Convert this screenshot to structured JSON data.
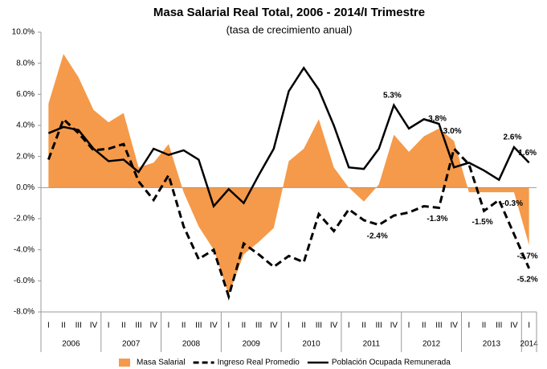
{
  "chart_data": {
    "type": "line",
    "title": "Masa Salarial Real Total, 2006 - 2014/I Trimestre",
    "subtitle": "(tasa de crecimiento anual)",
    "categories": [
      "I",
      "II",
      "III",
      "IV",
      "I",
      "II",
      "III",
      "IV",
      "I",
      "II",
      "III",
      "IV",
      "I",
      "II",
      "III",
      "IV",
      "I",
      "II",
      "III",
      "IV",
      "I",
      "II",
      "III",
      "IV",
      "I",
      "II",
      "III",
      "IV",
      "I",
      "II",
      "III",
      "IV",
      "I"
    ],
    "years": [
      "2006",
      "2007",
      "2008",
      "2009",
      "2010",
      "2011",
      "2012",
      "2013",
      "2014"
    ],
    "ylim": [
      -8,
      10
    ],
    "yticks": [
      {
        "value": -8,
        "label": "-8.0%"
      },
      {
        "value": -6,
        "label": "-6.0%"
      },
      {
        "value": -4,
        "label": "-4.0%"
      },
      {
        "value": -2,
        "label": "-2.0%"
      },
      {
        "value": 0,
        "label": "0.0%"
      },
      {
        "value": 2,
        "label": "2.0%"
      },
      {
        "value": 4,
        "label": "4.0%"
      },
      {
        "value": 6,
        "label": "6.0%"
      },
      {
        "value": 8,
        "label": "8.0%"
      },
      {
        "value": 10,
        "label": "10.0%"
      }
    ],
    "series": [
      {
        "name": "Masa Salarial",
        "color": "#f59a4a",
        "style": "area",
        "values": [
          5.4,
          8.6,
          7.1,
          5.0,
          4.2,
          4.8,
          1.3,
          1.6,
          2.8,
          -0.3,
          -2.5,
          -4.0,
          -6.9,
          -4.3,
          -3.5,
          -2.6,
          1.7,
          2.5,
          4.4,
          1.3,
          0,
          -0.9,
          0.2,
          3.4,
          2.3,
          3.3,
          3.8,
          3.0,
          -0.3,
          -0.3,
          -0.3,
          -0.3,
          -3.7
        ],
        "value_labels": [
          null,
          null,
          null,
          null,
          null,
          null,
          null,
          null,
          null,
          null,
          null,
          null,
          null,
          null,
          null,
          null,
          null,
          null,
          null,
          null,
          null,
          null,
          null,
          null,
          null,
          null,
          "3.8%",
          "3.0%",
          null,
          null,
          null,
          "-0.3%",
          "-3.7%"
        ]
      },
      {
        "name": "Ingreso Real Promedio",
        "color": "#000000",
        "style": "dashed",
        "values": [
          1.8,
          4.4,
          3.5,
          2.4,
          2.5,
          2.8,
          0.4,
          -0.8,
          0.8,
          -2.5,
          -4.6,
          -4.0,
          -7.0,
          -3.6,
          -4.3,
          -5.1,
          -4.4,
          -4.8,
          -1.7,
          -2.8,
          -1.4,
          -2.1,
          -2.4,
          -1.8,
          -1.6,
          -1.2,
          -1.3,
          2.5,
          1.5,
          -1.5,
          -0.8,
          -3.0,
          -5.2
        ],
        "value_labels": [
          null,
          null,
          null,
          null,
          null,
          null,
          null,
          null,
          null,
          null,
          null,
          null,
          null,
          null,
          null,
          null,
          null,
          null,
          null,
          null,
          null,
          null,
          "-2.4%",
          null,
          null,
          null,
          "-1.3%",
          null,
          null,
          "-1.5%",
          null,
          null,
          "-5.2%"
        ]
      },
      {
        "name": "Población Ocupada Remunerada",
        "color": "#000000",
        "style": "solid",
        "values": [
          3.5,
          3.9,
          3.7,
          2.5,
          1.7,
          1.8,
          1.0,
          2.5,
          2.1,
          2.4,
          1.8,
          -1.2,
          -0.1,
          -1.0,
          0.8,
          2.5,
          6.2,
          7.7,
          6.3,
          4.0,
          1.3,
          1.2,
          2.5,
          5.3,
          3.8,
          4.4,
          4.1,
          1.3,
          1.6,
          1.1,
          0.5,
          2.6,
          1.6
        ],
        "value_labels": [
          null,
          null,
          null,
          null,
          null,
          null,
          null,
          null,
          null,
          null,
          null,
          null,
          null,
          null,
          null,
          null,
          null,
          null,
          null,
          null,
          null,
          null,
          null,
          "5.3%",
          null,
          null,
          null,
          null,
          null,
          null,
          null,
          "2.6%",
          "1.6%"
        ]
      }
    ]
  }
}
